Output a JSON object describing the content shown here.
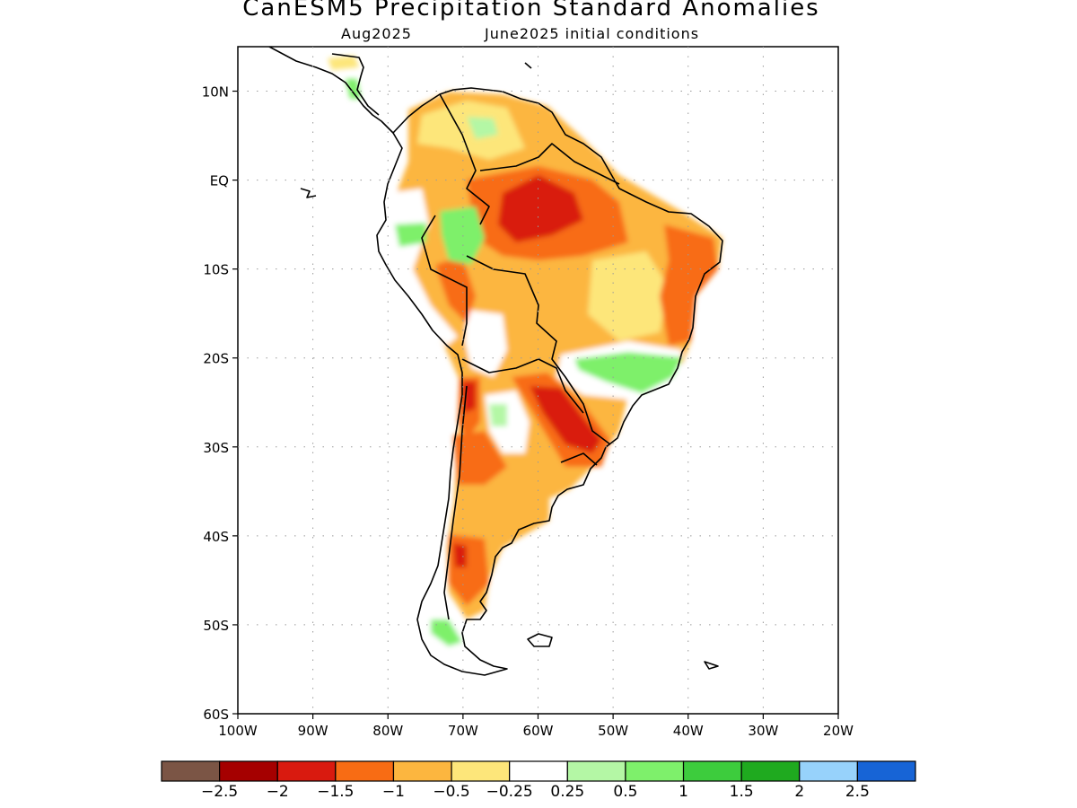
{
  "title": "CanESM5 Precipitation Standard Anomalies",
  "subtitle_left": "Aug2025",
  "subtitle_right": "June2025 initial conditions",
  "map": {
    "lon_range": [
      -100,
      -20
    ],
    "lat_range": [
      -60,
      15
    ],
    "lat_ticks": [
      {
        "value": 10,
        "label": "10N"
      },
      {
        "value": 0,
        "label": "EQ"
      },
      {
        "value": -10,
        "label": "10S"
      },
      {
        "value": -20,
        "label": "20S"
      },
      {
        "value": -30,
        "label": "30S"
      },
      {
        "value": -40,
        "label": "40S"
      },
      {
        "value": -50,
        "label": "50S"
      },
      {
        "value": -60,
        "label": "60S"
      }
    ],
    "lon_ticks": [
      {
        "value": -100,
        "label": "100W"
      },
      {
        "value": -90,
        "label": "90W"
      },
      {
        "value": -80,
        "label": "80W"
      },
      {
        "value": -70,
        "label": "70W"
      },
      {
        "value": -60,
        "label": "60W"
      },
      {
        "value": -50,
        "label": "50W"
      },
      {
        "value": -40,
        "label": "40W"
      },
      {
        "value": -30,
        "label": "30W"
      },
      {
        "value": -20,
        "label": "20W"
      }
    ],
    "grid": true
  },
  "colorbar": {
    "colors": [
      "#7b5545",
      "#a50000",
      "#d91a0f",
      "#f86c14",
      "#fcb63f",
      "#fde67a",
      "#ffffff",
      "#b4f7a5",
      "#7ef06b",
      "#3dcc3d",
      "#1faa1f",
      "#97d2fb",
      "#1764d6"
    ],
    "labels": [
      "−2.5",
      "−2",
      "−1.5",
      "−1",
      "−0.5",
      "−0.25",
      "0.25",
      "0.5",
      "1",
      "1.5",
      "2",
      "2.5"
    ]
  },
  "colors": {
    "coast": "#000000",
    "grid": "#9a9a9a"
  }
}
